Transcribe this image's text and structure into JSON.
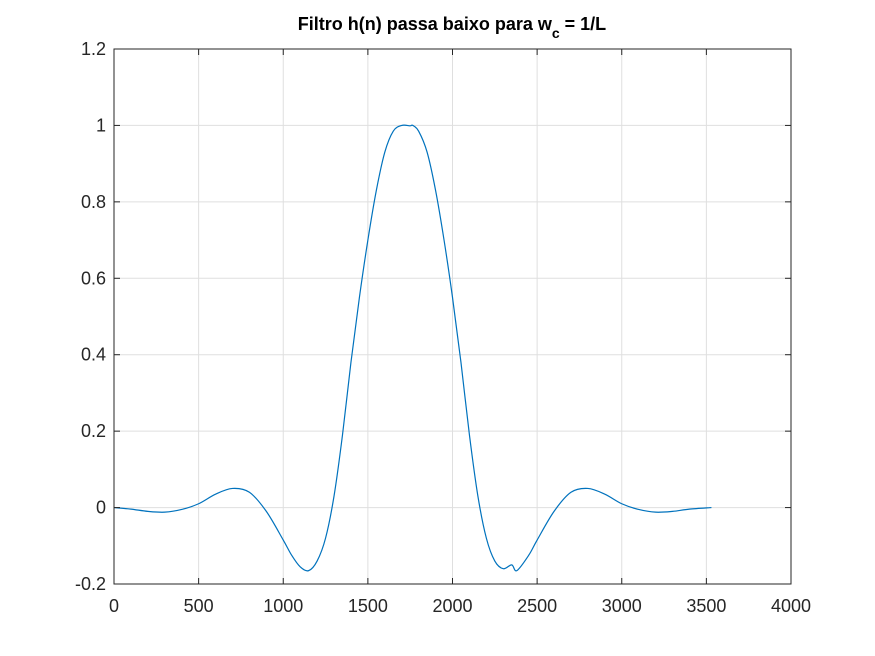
{
  "chart_data": {
    "type": "line",
    "title": "Filtro h(n) passa baixo para w",
    "title_subscript": "c",
    "title_suffix": " = 1/L",
    "xlabel": "",
    "ylabel": "",
    "xlim": [
      0,
      4000
    ],
    "ylim": [
      -0.2,
      1.2
    ],
    "xticks": [
      0,
      500,
      1000,
      1500,
      2000,
      2500,
      3000,
      3500,
      4000
    ],
    "yticks": [
      -0.2,
      0,
      0.2,
      0.4,
      0.6,
      0.8,
      1,
      1.2
    ],
    "xtick_labels": [
      "0",
      "500",
      "1000",
      "1500",
      "2000",
      "2500",
      "3000",
      "3500",
      "4000"
    ],
    "ytick_labels": [
      "-0.2",
      "0",
      "0.2",
      "0.4",
      "0.6",
      "0.8",
      "1",
      "1.2"
    ],
    "grid": true,
    "series": [
      {
        "color": "#0072BD",
        "x": [
          0,
          100,
          200,
          300,
          400,
          500,
          600,
          700,
          800,
          900,
          1000,
          1050,
          1100,
          1150,
          1200,
          1250,
          1300,
          1350,
          1400,
          1450,
          1500,
          1550,
          1600,
          1650,
          1700,
          1750,
          1765,
          1800,
          1850,
          1900,
          1950,
          2000,
          2050,
          2100,
          2150,
          2200,
          2250,
          2300,
          2350,
          2380,
          2450,
          2500,
          2600,
          2700,
          2800,
          2900,
          3000,
          3100,
          3200,
          3300,
          3400,
          3530
        ],
        "y": [
          0,
          -0.004,
          -0.01,
          -0.012,
          -0.005,
          0.01,
          0.035,
          0.05,
          0.04,
          -0.01,
          -0.085,
          -0.125,
          -0.155,
          -0.165,
          -0.14,
          -0.08,
          0.03,
          0.19,
          0.38,
          0.55,
          0.7,
          0.83,
          0.93,
          0.985,
          1.0,
          0.999,
          1.0,
          0.985,
          0.93,
          0.83,
          0.7,
          0.55,
          0.38,
          0.19,
          0.03,
          -0.08,
          -0.14,
          -0.16,
          -0.15,
          -0.165,
          -0.125,
          -0.085,
          -0.01,
          0.04,
          0.05,
          0.035,
          0.01,
          -0.005,
          -0.012,
          -0.01,
          -0.004,
          0
        ]
      }
    ]
  }
}
